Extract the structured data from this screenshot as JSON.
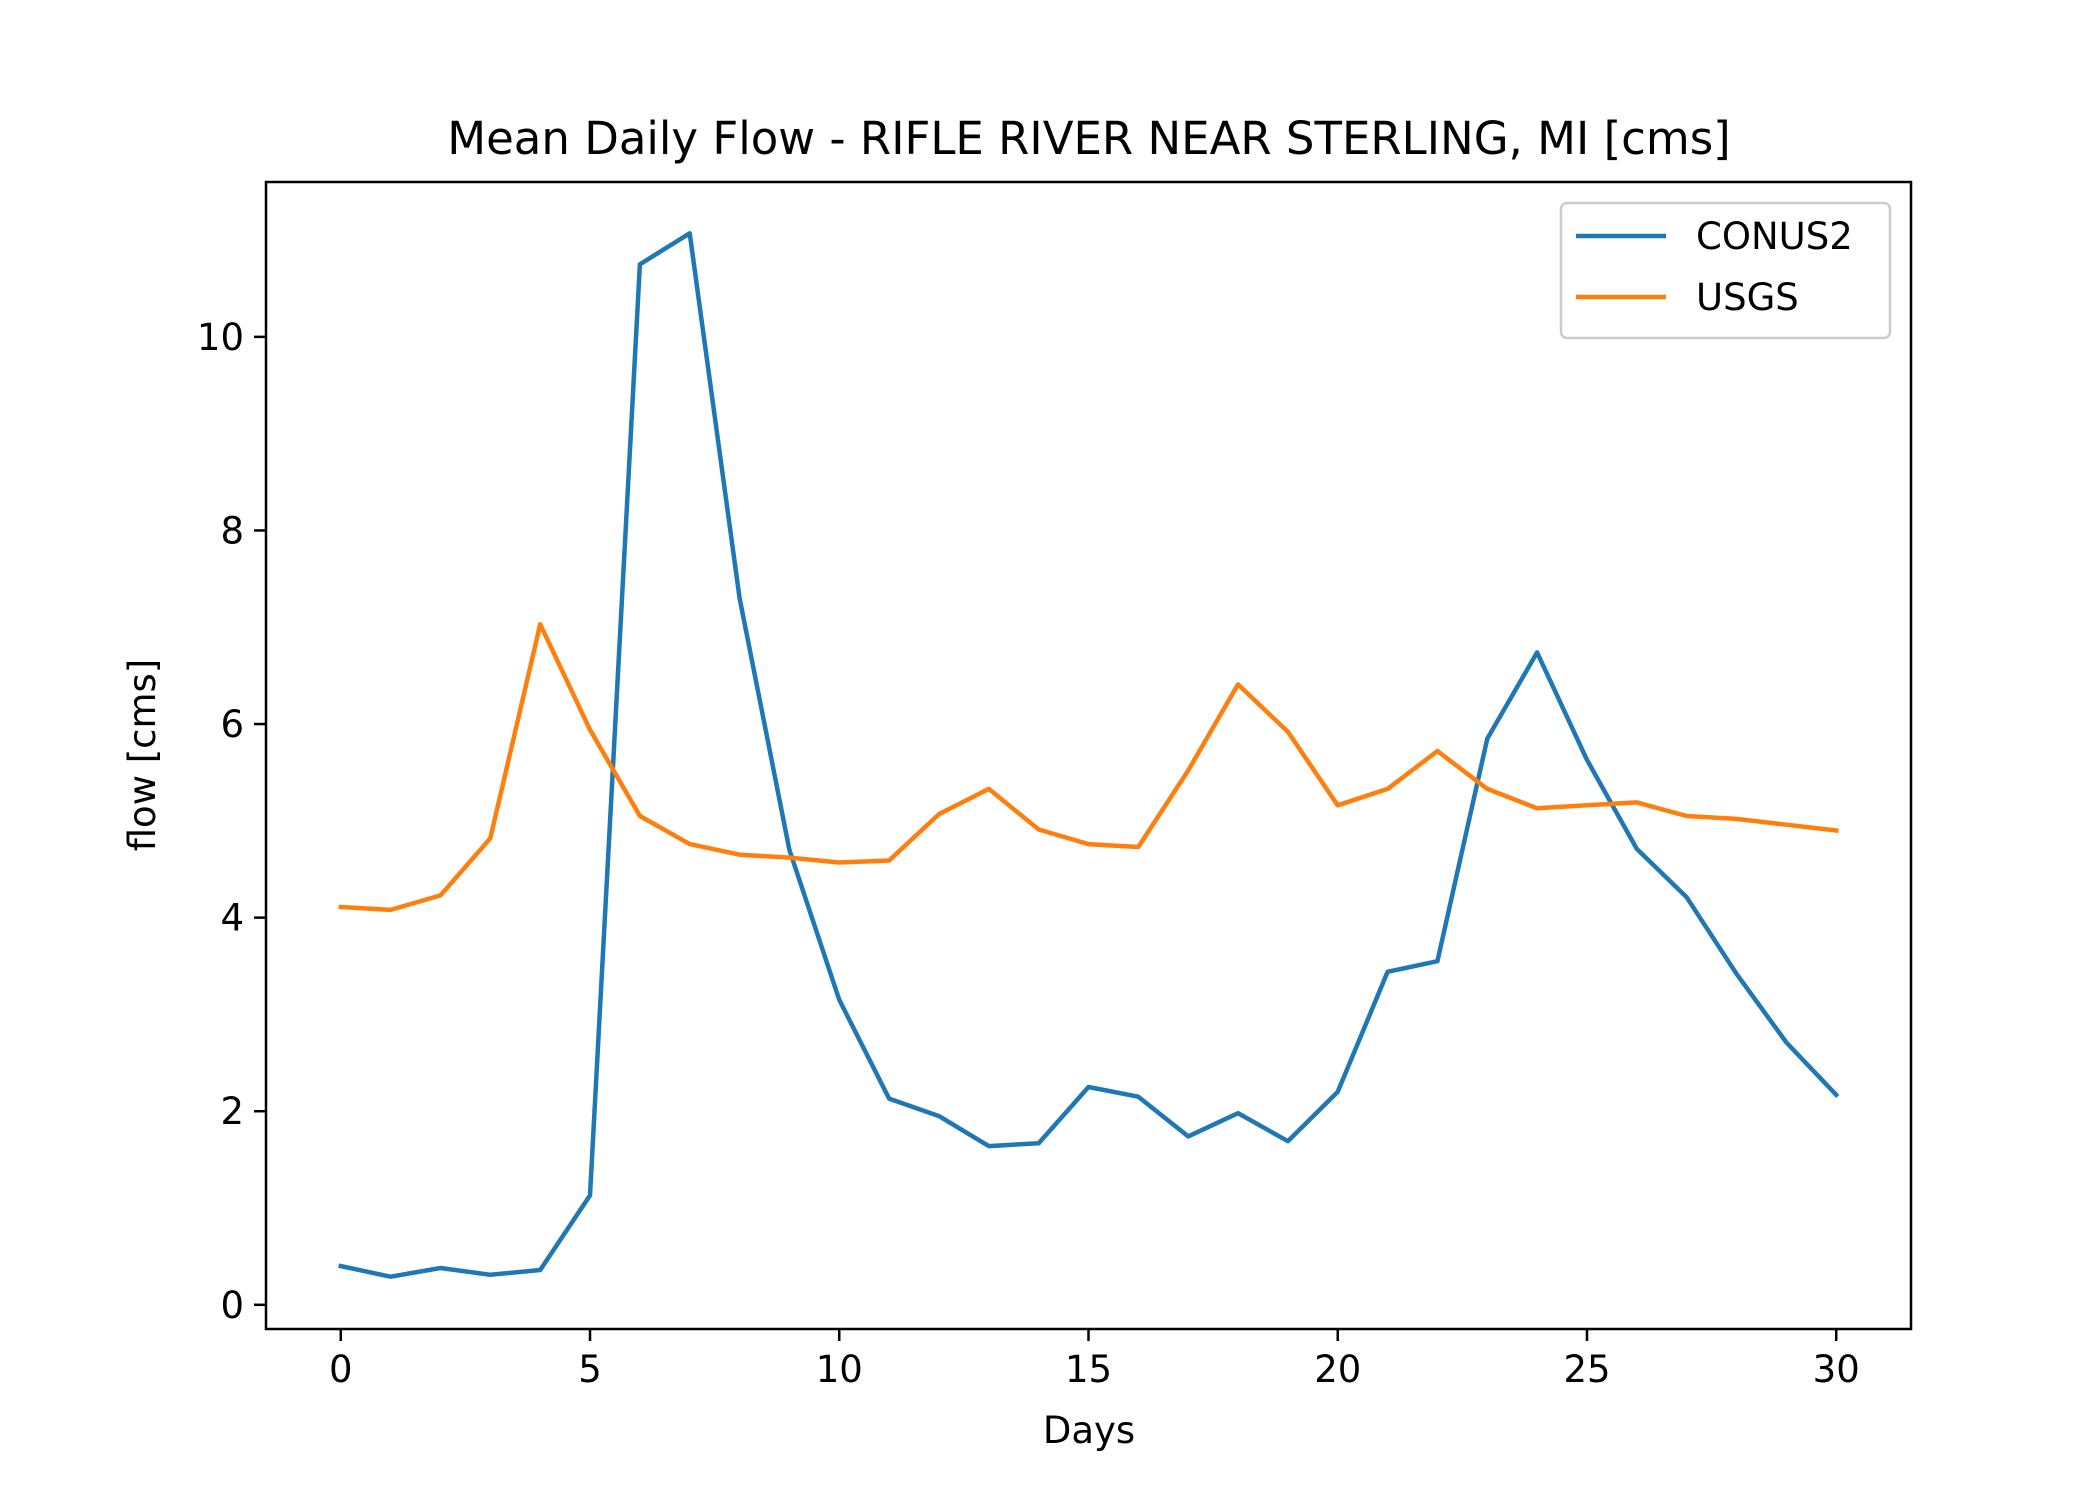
{
  "chart_data": {
    "type": "line",
    "title": "Mean Daily Flow - RIFLE RIVER NEAR STERLING, MI [cms]",
    "xlabel": "Days",
    "ylabel": "flow [cms]",
    "xlim": [
      -1.5,
      31.5
    ],
    "ylim": [
      -0.25,
      11.6
    ],
    "xticks": [
      0,
      5,
      10,
      15,
      20,
      25,
      30
    ],
    "yticks": [
      0,
      2,
      4,
      6,
      8,
      10
    ],
    "grid": false,
    "legend_position": "top-right",
    "x": [
      0,
      1,
      2,
      3,
      4,
      5,
      6,
      7,
      8,
      9,
      10,
      11,
      12,
      13,
      14,
      15,
      16,
      17,
      18,
      19,
      20,
      21,
      22,
      23,
      24,
      25,
      26,
      27,
      28,
      29,
      30
    ],
    "series": [
      {
        "name": "CONUS2",
        "color": "#1f77b4",
        "values": [
          0.4,
          0.29,
          0.38,
          0.31,
          0.36,
          1.13,
          10.75,
          11.07,
          7.3,
          4.7,
          3.15,
          2.13,
          1.95,
          1.64,
          1.67,
          2.25,
          2.15,
          1.74,
          1.98,
          1.69,
          2.2,
          3.44,
          3.55,
          5.85,
          6.74,
          5.63,
          4.71,
          4.21,
          3.42,
          2.71,
          2.17
        ]
      },
      {
        "name": "USGS",
        "color": "#ff7f0e",
        "values": [
          4.11,
          4.08,
          4.23,
          4.82,
          7.03,
          5.94,
          5.05,
          4.76,
          4.65,
          4.62,
          4.57,
          4.59,
          5.07,
          5.33,
          4.91,
          4.76,
          4.73,
          5.52,
          6.41,
          5.92,
          5.16,
          5.33,
          5.72,
          5.33,
          5.13,
          5.16,
          5.19,
          5.05,
          5.02,
          4.96,
          4.9
        ]
      }
    ]
  }
}
